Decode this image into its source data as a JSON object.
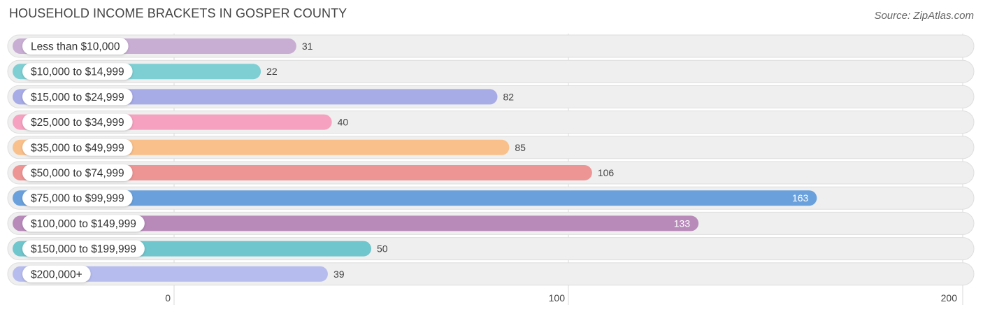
{
  "header": {
    "title": "HOUSEHOLD INCOME BRACKETS IN GOSPER COUNTY",
    "source": "Source: ZipAtlas.com"
  },
  "chart_data": {
    "type": "bar",
    "orientation": "horizontal",
    "title": "HOUSEHOLD INCOME BRACKETS IN GOSPER COUNTY",
    "xlabel": "",
    "ylabel": "",
    "xlim": [
      0,
      200
    ],
    "ticks": [
      0,
      100,
      200
    ],
    "grid": true,
    "categories": [
      "Less than $10,000",
      "$10,000 to $14,999",
      "$15,000 to $24,999",
      "$25,000 to $34,999",
      "$35,000 to $49,999",
      "$50,000 to $74,999",
      "$75,000 to $99,999",
      "$100,000 to $149,999",
      "$150,000 to $199,999",
      "$200,000+"
    ],
    "values": [
      31,
      22,
      82,
      40,
      85,
      106,
      163,
      133,
      50,
      39
    ],
    "colors": [
      "#c9aed4",
      "#7ecfd3",
      "#a7abe6",
      "#f5a1bf",
      "#f9c08b",
      "#ec9594",
      "#6aa1dc",
      "#b78aba",
      "#6fc6cc",
      "#b6bcee"
    ]
  }
}
